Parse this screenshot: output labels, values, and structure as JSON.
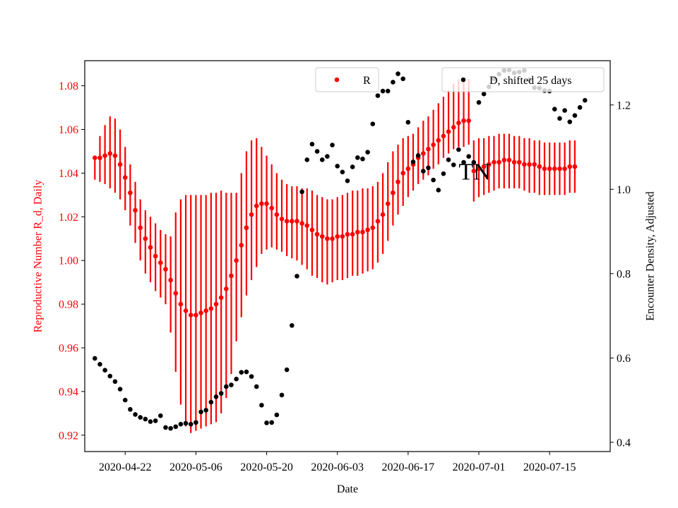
{
  "chart_data": {
    "type": "scatter",
    "xlabel": "Date",
    "ylabel_left": "Reproductive Number R_d, Daily",
    "ylabel_right": "Encounter Density, Adjusted",
    "annotation": "TN",
    "colors": {
      "r_series": "#ff0000",
      "d_series": "#000000",
      "left_axis_text": "#ff0000"
    },
    "x_ticks": [
      "2020-04-22",
      "2020-05-06",
      "2020-05-20",
      "2020-06-03",
      "2020-06-17",
      "2020-07-01",
      "2020-07-15"
    ],
    "xlim": [
      "2020-04-14",
      "2020-07-27"
    ],
    "ylim_left": [
      0.9125,
      1.0915
    ],
    "ylim_right": [
      0.378,
      1.305
    ],
    "y_ticks_left": [
      "0.92",
      "0.94",
      "0.96",
      "0.98",
      "1.00",
      "1.02",
      "1.04",
      "1.06",
      "1.08"
    ],
    "y_ticks_right": [
      "0.4",
      "0.6",
      "0.8",
      "1.0",
      "1.2"
    ],
    "legend": {
      "r_label": "R",
      "d_label": "D, shifted 25 days"
    },
    "series": [
      {
        "name": "R",
        "axis": "left",
        "start_date": "2020-04-16",
        "values": [
          1.047,
          1.047,
          1.048,
          1.049,
          1.048,
          1.044,
          1.038,
          1.031,
          1.023,
          1.015,
          1.01,
          1.006,
          1.002,
          0.999,
          0.996,
          0.991,
          0.985,
          0.98,
          0.977,
          0.975,
          0.975,
          0.976,
          0.977,
          0.978,
          0.98,
          0.983,
          0.987,
          0.993,
          1.0,
          1.007,
          1.015,
          1.021,
          1.025,
          1.026,
          1.026,
          1.024,
          1.021,
          1.019,
          1.018,
          1.018,
          1.018,
          1.017,
          1.016,
          1.014,
          1.012,
          1.011,
          1.01,
          1.01,
          1.011,
          1.011,
          1.012,
          1.012,
          1.013,
          1.013,
          1.014,
          1.015,
          1.018,
          1.021,
          1.026,
          1.031,
          1.036,
          1.04,
          1.042,
          1.044,
          1.047,
          1.049,
          1.051,
          1.053,
          1.055,
          1.057,
          1.059,
          1.061,
          1.063,
          1.064,
          1.064,
          1.041,
          1.042,
          1.043,
          1.044,
          1.045,
          1.045,
          1.046,
          1.046,
          1.045,
          1.045,
          1.044,
          1.044,
          1.044,
          1.043,
          1.042,
          1.042,
          1.042,
          1.042,
          1.042,
          1.043,
          1.043
        ],
        "err_low": [
          1.037,
          1.036,
          1.035,
          1.033,
          1.031,
          1.028,
          1.023,
          1.016,
          1.008,
          1.0,
          0.994,
          0.99,
          0.986,
          0.983,
          0.98,
          0.967,
          0.949,
          0.934,
          0.924,
          0.921,
          0.922,
          0.923,
          0.924,
          0.925,
          0.926,
          0.93,
          0.937,
          0.948,
          0.963,
          0.974,
          0.984,
          0.991,
          0.997,
          1.003,
          1.005,
          1.006,
          1.005,
          1.004,
          1.002,
          1.001,
          1.0,
          0.998,
          0.996,
          0.993,
          0.992,
          0.99,
          0.989,
          0.99,
          0.991,
          0.991,
          0.992,
          0.993,
          0.993,
          0.994,
          0.995,
          0.996,
          0.999,
          1.003,
          1.009,
          1.016,
          1.021,
          1.025,
          1.029,
          1.032,
          1.035,
          1.037,
          1.039,
          1.042,
          1.044,
          1.047,
          1.049,
          1.051,
          1.052,
          1.052,
          1.053,
          1.027,
          1.029,
          1.03,
          1.031,
          1.032,
          1.033,
          1.033,
          1.033,
          1.033,
          1.033,
          1.032,
          1.031,
          1.031,
          1.03,
          1.03,
          1.03,
          1.03,
          1.03,
          1.03,
          1.031,
          1.031
        ],
        "err_high": [
          1.047,
          1.057,
          1.062,
          1.066,
          1.065,
          1.06,
          1.052,
          1.044,
          1.036,
          1.028,
          1.023,
          1.02,
          1.017,
          1.014,
          1.012,
          1.011,
          1.022,
          1.028,
          1.03,
          1.03,
          1.03,
          1.03,
          1.03,
          1.031,
          1.031,
          1.032,
          1.031,
          1.031,
          1.031,
          1.04,
          1.05,
          1.055,
          1.056,
          1.052,
          1.048,
          1.044,
          1.04,
          1.037,
          1.035,
          1.034,
          1.034,
          1.033,
          1.033,
          1.032,
          1.03,
          1.029,
          1.028,
          1.028,
          1.029,
          1.03,
          1.031,
          1.032,
          1.032,
          1.033,
          1.033,
          1.034,
          1.036,
          1.04,
          1.045,
          1.05,
          1.053,
          1.056,
          1.057,
          1.058,
          1.061,
          1.064,
          1.066,
          1.069,
          1.072,
          1.075,
          1.078,
          1.081,
          1.083,
          1.083,
          1.083,
          1.055,
          1.056,
          1.056,
          1.057,
          1.057,
          1.058,
          1.058,
          1.058,
          1.057,
          1.057,
          1.056,
          1.056,
          1.055,
          1.055,
          1.054,
          1.054,
          1.054,
          1.054,
          1.054,
          1.055,
          1.055
        ]
      },
      {
        "name": "D, shifted 25 days",
        "axis": "right",
        "points": [
          [
            "2020-04-16",
            0.599
          ],
          [
            "2020-04-17",
            0.585
          ],
          [
            "2020-04-18",
            0.571
          ],
          [
            "2020-04-19",
            0.557
          ],
          [
            "2020-04-20",
            0.544
          ],
          [
            "2020-04-21",
            0.526
          ],
          [
            "2020-04-22",
            0.5
          ],
          [
            "2020-04-23",
            0.478
          ],
          [
            "2020-04-24",
            0.466
          ],
          [
            "2020-04-25",
            0.459
          ],
          [
            "2020-04-26",
            0.455
          ],
          [
            "2020-04-27",
            0.449
          ],
          [
            "2020-04-28",
            0.451
          ],
          [
            "2020-04-29",
            0.463
          ],
          [
            "2020-04-30",
            0.435
          ],
          [
            "2020-05-01",
            0.433
          ],
          [
            "2020-05-02",
            0.437
          ],
          [
            "2020-05-03",
            0.443
          ],
          [
            "2020-05-04",
            0.445
          ],
          [
            "2020-05-05",
            0.443
          ],
          [
            "2020-05-06",
            0.447
          ],
          [
            "2020-05-07",
            0.472
          ],
          [
            "2020-05-08",
            0.476
          ],
          [
            "2020-05-09",
            0.495
          ],
          [
            "2020-05-10",
            0.508
          ],
          [
            "2020-05-11",
            0.516
          ],
          [
            "2020-05-12",
            0.532
          ],
          [
            "2020-05-13",
            0.536
          ],
          [
            "2020-05-14",
            0.55
          ],
          [
            "2020-05-15",
            0.566
          ],
          [
            "2020-05-16",
            0.567
          ],
          [
            "2020-05-17",
            0.556
          ],
          [
            "2020-05-18",
            0.532
          ],
          [
            "2020-05-19",
            0.488
          ],
          [
            "2020-05-20",
            0.446
          ],
          [
            "2020-05-21",
            0.447
          ],
          [
            "2020-05-22",
            0.465
          ],
          [
            "2020-05-23",
            0.512
          ],
          [
            "2020-05-24",
            0.572
          ],
          [
            "2020-05-25",
            0.677
          ],
          [
            "2020-05-26",
            0.794
          ],
          [
            "2020-05-27",
            0.994
          ],
          [
            "2020-05-28",
            1.07
          ],
          [
            "2020-05-29",
            1.107
          ],
          [
            "2020-05-30",
            1.09
          ],
          [
            "2020-05-31",
            1.07
          ],
          [
            "2020-06-01",
            1.078
          ],
          [
            "2020-06-02",
            1.105
          ],
          [
            "2020-06-03",
            1.055
          ],
          [
            "2020-06-04",
            1.041
          ],
          [
            "2020-06-05",
            1.02
          ],
          [
            "2020-06-06",
            1.053
          ],
          [
            "2020-06-07",
            1.075
          ],
          [
            "2020-06-08",
            1.072
          ],
          [
            "2020-06-09",
            1.088
          ],
          [
            "2020-06-10",
            1.155
          ],
          [
            "2020-06-11",
            1.222
          ],
          [
            "2020-06-12",
            1.233
          ],
          [
            "2020-06-13",
            1.233
          ],
          [
            "2020-06-14",
            1.254
          ],
          [
            "2020-06-15",
            1.274
          ],
          [
            "2020-06-16",
            1.262
          ],
          [
            "2020-06-17",
            1.159
          ],
          [
            "2020-06-18",
            1.065
          ],
          [
            "2020-06-19",
            1.08
          ],
          [
            "2020-06-20",
            1.043
          ],
          [
            "2020-06-21",
            1.051
          ],
          [
            "2020-06-22",
            1.022
          ],
          [
            "2020-06-23",
            0.998
          ],
          [
            "2020-06-24",
            1.037
          ],
          [
            "2020-06-25",
            1.07
          ],
          [
            "2020-06-26",
            1.058
          ],
          [
            "2020-06-27",
            1.094
          ],
          [
            "2020-06-28",
            1.064
          ],
          [
            "2020-06-29",
            1.078
          ],
          [
            "2020-06-30",
            1.064
          ],
          [
            "2020-07-01",
            1.206
          ],
          [
            "2020-07-02",
            1.226
          ],
          [
            "2020-07-03",
            1.243
          ],
          [
            "2020-07-04",
            1.262
          ],
          [
            "2020-07-05",
            1.273
          ],
          [
            "2020-07-06",
            1.282
          ],
          [
            "2020-07-07",
            1.283
          ],
          [
            "2020-07-08",
            1.276
          ],
          [
            "2020-07-09",
            1.278
          ],
          [
            "2020-07-10",
            1.282
          ],
          [
            "2020-07-11",
            1.26
          ],
          [
            "2020-07-12",
            1.241
          ],
          [
            "2020-07-13",
            1.24
          ],
          [
            "2020-07-14",
            1.234
          ],
          [
            "2020-07-15",
            1.233
          ],
          [
            "2020-07-16",
            1.19
          ],
          [
            "2020-07-17",
            1.168
          ],
          [
            "2020-07-18",
            1.187
          ],
          [
            "2020-07-19",
            1.16
          ],
          [
            "2020-07-20",
            1.175
          ],
          [
            "2020-07-21",
            1.194
          ],
          [
            "2020-07-22",
            1.211
          ]
        ]
      }
    ]
  }
}
